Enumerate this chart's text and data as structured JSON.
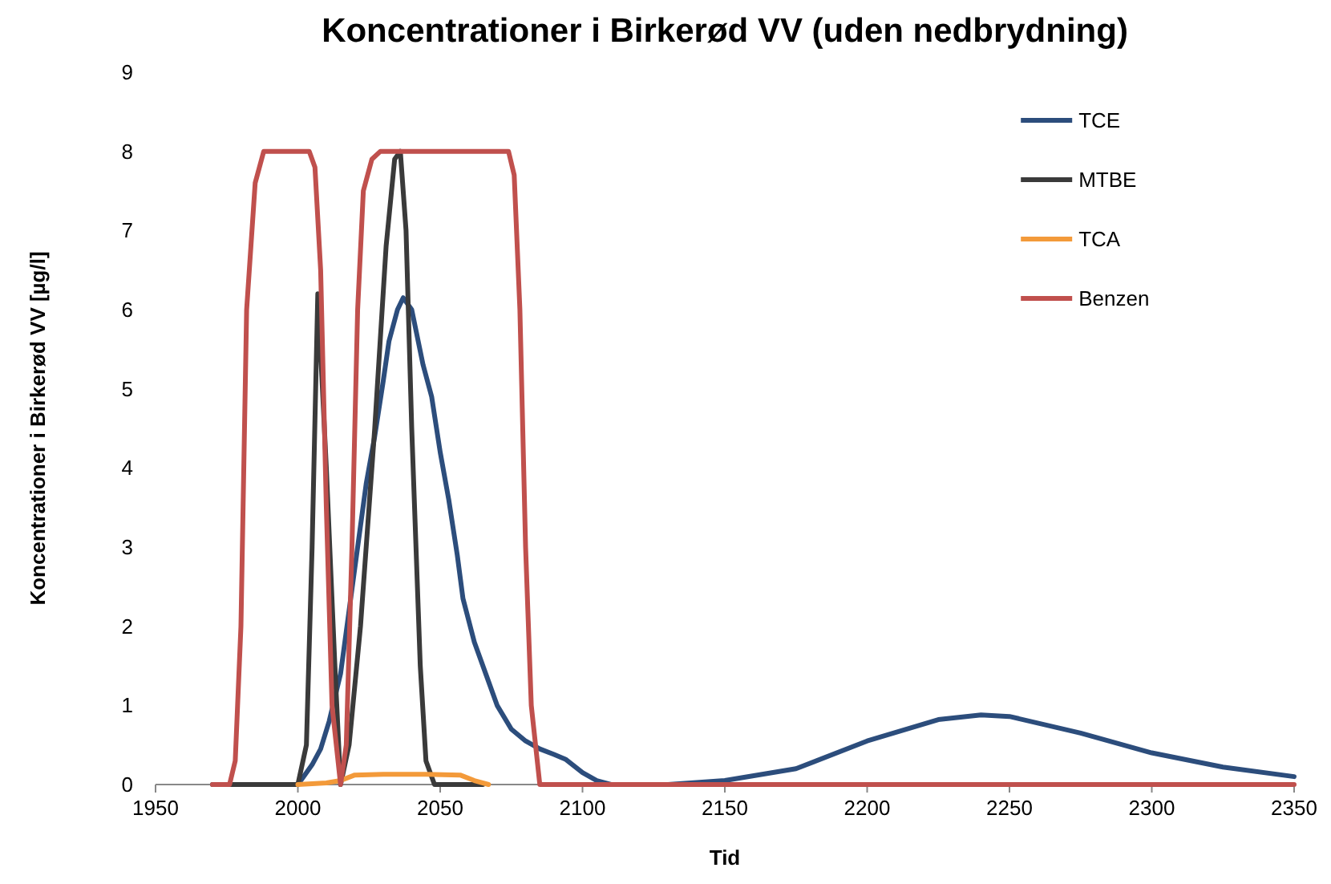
{
  "chart_data": {
    "type": "line",
    "title": "Koncentrationer i Birkerød VV (uden nedbrydning)",
    "xlabel": "Tid",
    "ylabel": "Koncentrationer i Birkerød VV [µg/l]",
    "xlim": [
      1950,
      2350
    ],
    "xticks": [
      1950,
      2000,
      2050,
      2100,
      2150,
      2200,
      2250,
      2300,
      2350
    ],
    "ylim": [
      0,
      9
    ],
    "yticks": [
      0,
      1,
      2,
      3,
      4,
      5,
      6,
      7,
      8,
      9
    ],
    "grid": false,
    "legend": "top right",
    "line_style": "solid",
    "series": [
      {
        "name": "TCE",
        "color": "#2c4d7c",
        "x": [
          2000,
          2002,
          2005,
          2008,
          2011,
          2015,
          2018,
          2021,
          2024,
          2027,
          2030,
          2032,
          2035,
          2037,
          2040,
          2044,
          2047,
          2050,
          2053,
          2056,
          2058,
          2062,
          2066,
          2070,
          2075,
          2080,
          2085,
          2090,
          2094,
          2100,
          2105,
          2110,
          2130,
          2150,
          2175,
          2200,
          2225,
          2240,
          2250,
          2275,
          2300,
          2325,
          2350
        ],
        "values": [
          0,
          0.1,
          0.25,
          0.45,
          0.8,
          1.4,
          2.2,
          3.0,
          3.8,
          4.4,
          5.1,
          5.6,
          6.0,
          6.15,
          6.0,
          5.3,
          4.9,
          4.2,
          3.6,
          2.9,
          2.35,
          1.8,
          1.4,
          1.0,
          0.7,
          0.55,
          0.45,
          0.38,
          0.32,
          0.15,
          0.05,
          0,
          0,
          0.05,
          0.2,
          0.55,
          0.82,
          0.88,
          0.86,
          0.65,
          0.4,
          0.22,
          0.1
        ]
      },
      {
        "name": "MTBE",
        "color": "#3a3a3a",
        "x": [
          1970,
          2000,
          2003,
          2005,
          2007,
          2010,
          2013,
          2015,
          2018,
          2022,
          2027,
          2031,
          2034,
          2036,
          2038,
          2040,
          2043,
          2045,
          2048,
          2065
        ],
        "values": [
          0,
          0,
          0.5,
          3.0,
          6.2,
          4.0,
          1.5,
          0,
          0.5,
          2.0,
          4.5,
          6.8,
          7.9,
          8.0,
          7.0,
          4.5,
          1.5,
          0.3,
          0,
          0
        ]
      },
      {
        "name": "TCA",
        "color": "#f39a3a",
        "x": [
          2000,
          2010,
          2015,
          2020,
          2030,
          2045,
          2057,
          2062,
          2067
        ],
        "values": [
          0,
          0.02,
          0.05,
          0.12,
          0.13,
          0.13,
          0.12,
          0.05,
          0
        ]
      },
      {
        "name": "Benzen",
        "color": "#c0504d",
        "x": [
          1970,
          1976,
          1978,
          1980,
          1982,
          1985,
          1988,
          1995,
          2004,
          2006,
          2008,
          2010,
          2012,
          2015,
          2017,
          2019,
          2021,
          2023,
          2026,
          2029,
          2050,
          2074,
          2076,
          2078,
          2080,
          2082,
          2085,
          2350
        ],
        "values": [
          0,
          0,
          0.3,
          2.0,
          6.0,
          7.6,
          8.0,
          8.0,
          8.0,
          7.8,
          6.5,
          3.5,
          1.0,
          0,
          0.5,
          3.0,
          6.0,
          7.5,
          7.9,
          8.0,
          8.0,
          8.0,
          7.7,
          6.0,
          3.0,
          1.0,
          0,
          0
        ]
      }
    ]
  }
}
